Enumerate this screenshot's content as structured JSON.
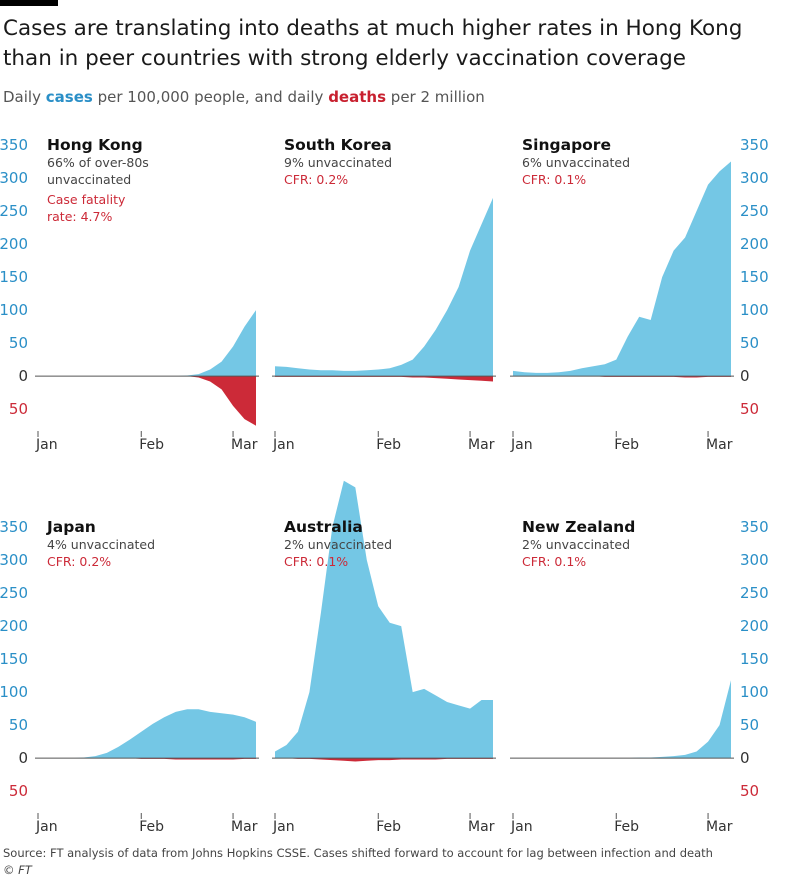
{
  "chart_data": {
    "type": "area",
    "title": "Cases are translating into deaths at much higher rates in Hong Kong than in peer countries with strong elderly vaccination coverage",
    "subtitle": [
      "Daily",
      "per 100,000 people, and daily",
      "per 2 million"
    ],
    "categories": [
      "Jan",
      null,
      null,
      null,
      null,
      null,
      null,
      null,
      null,
      "Feb",
      null,
      null,
      null,
      null,
      null,
      null,
      null,
      "Mar",
      null,
      null
    ],
    "ylim": [
      -80,
      350
    ],
    "yticks": [
      {
        "value": -50,
        "label": "50"
      },
      0,
      50,
      100,
      150,
      200,
      250,
      300,
      350
    ],
    "series_names": [
      {
        "name": "cases",
        "color": "#74c7e5"
      },
      {
        "name": "deaths",
        "color": "#cc2a38"
      }
    ],
    "panels": [
      {
        "title": "Hong Kong",
        "note": [
          "66% of over-80s",
          "unvaccinated"
        ],
        "cfr": [
          "Case fatality",
          "rate: 4.7%"
        ],
        "cases": [
          0,
          0,
          0,
          0,
          0,
          0,
          0,
          0,
          0,
          0,
          0,
          0,
          0,
          1,
          3,
          10,
          22,
          45,
          75,
          100
        ],
        "deaths": [
          0,
          0,
          0,
          0,
          0,
          0,
          0,
          0,
          0,
          0,
          0,
          0,
          0,
          0,
          -2,
          -8,
          -20,
          -45,
          -65,
          -75
        ]
      },
      {
        "title": "South Korea",
        "note": [
          "9% unvaccinated"
        ],
        "cfr": [
          "CFR: 0.2%"
        ],
        "cases": [
          15,
          14,
          12,
          10,
          9,
          9,
          8,
          8,
          9,
          10,
          12,
          17,
          25,
          45,
          70,
          100,
          135,
          190,
          230,
          270
        ],
        "deaths": [
          -1,
          -1,
          -1,
          -1,
          -1,
          -1,
          -1,
          -1,
          -1,
          -1,
          -1,
          -1,
          -2,
          -2,
          -3,
          -4,
          -5,
          -6,
          -7,
          -8
        ]
      },
      {
        "title": "Singapore",
        "note": [
          "6% unvaccinated"
        ],
        "cfr": [
          "CFR: 0.1%"
        ],
        "cases": [
          8,
          6,
          5,
          5,
          6,
          8,
          12,
          15,
          18,
          25,
          60,
          90,
          85,
          150,
          190,
          210,
          250,
          290,
          310,
          325
        ],
        "deaths": [
          0,
          0,
          0,
          0,
          0,
          0,
          0,
          0,
          -1,
          -1,
          -1,
          -1,
          -1,
          -1,
          -1,
          -2,
          -2,
          -1,
          -1,
          -1
        ]
      },
      {
        "title": "Japan",
        "note": [
          "4% unvaccinated"
        ],
        "cfr": [
          "CFR: 0.2%"
        ],
        "cases": [
          0,
          0,
          0,
          0,
          1,
          3,
          8,
          17,
          28,
          40,
          52,
          62,
          70,
          74,
          74,
          70,
          68,
          66,
          62,
          55
        ],
        "deaths": [
          0,
          0,
          0,
          0,
          0,
          0,
          0,
          0,
          0,
          -1,
          -1,
          -1,
          -2,
          -2,
          -2,
          -2,
          -2,
          -2,
          -1,
          -1
        ]
      },
      {
        "title": "Australia",
        "note": [
          "2% unvaccinated"
        ],
        "cfr": [
          "CFR: 0.1%"
        ],
        "cases": [
          10,
          20,
          40,
          100,
          220,
          350,
          420,
          410,
          300,
          230,
          205,
          200,
          100,
          105,
          95,
          85,
          80,
          75,
          88,
          88
        ],
        "deaths": [
          0,
          0,
          -1,
          -1,
          -2,
          -3,
          -4,
          -5,
          -4,
          -3,
          -3,
          -2,
          -2,
          -2,
          -2,
          -1,
          -1,
          -1,
          -1,
          -1
        ]
      },
      {
        "title": "New Zealand",
        "note": [
          "2% unvaccinated"
        ],
        "cfr": [
          "CFR: 0.1%"
        ],
        "cases": [
          0,
          0,
          0,
          0,
          0,
          0,
          0,
          0,
          0,
          0,
          0,
          1,
          1,
          2,
          3,
          5,
          10,
          25,
          50,
          118
        ],
        "deaths": [
          0,
          0,
          0,
          0,
          0,
          0,
          0,
          0,
          0,
          0,
          0,
          0,
          0,
          0,
          0,
          0,
          0,
          0,
          0,
          0
        ]
      }
    ],
    "source": "Source: FT analysis of data from Johns Hopkins CSSE. Cases shifted forward to account for lag between infection and death",
    "credit": "© FT"
  }
}
